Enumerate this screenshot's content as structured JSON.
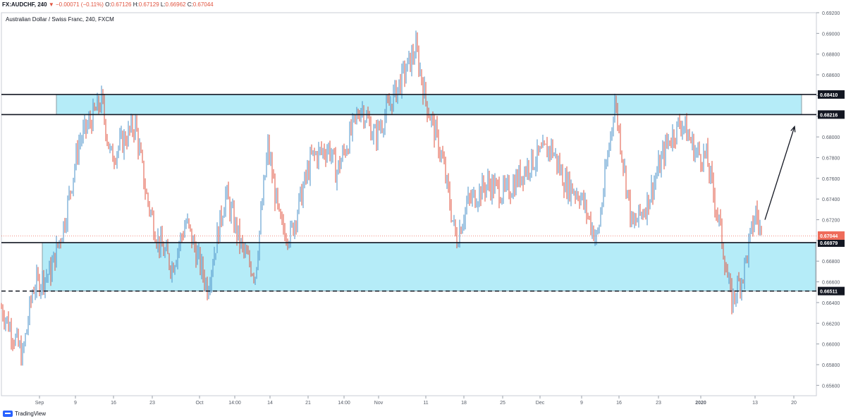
{
  "header": {
    "symbol": "FX:AUDCHF, 240",
    "change_arrow": "▼",
    "change": "−0.00071 (−0.11%)",
    "open_label": "O:",
    "open": "0.67126",
    "high_label": "H:",
    "high": "0.67129",
    "low_label": "L:",
    "low": "0.66962",
    "close_label": "C:",
    "close": "0.67044"
  },
  "subtitle": "Australian Dollar / Swiss Franc, 240, FXCM",
  "footer": {
    "brand": "TradingView",
    "logo_icon": "tradingview-logo-icon"
  },
  "colors": {
    "up": "#4a90c8",
    "down": "#e0533f",
    "zone_fill": "#b5ecf8",
    "zone_stroke": "#131722",
    "last_price": "#ef6c5a",
    "grid": "#d9dde4"
  },
  "chart_data": {
    "type": "candlestick",
    "symbol": "AUDCHF",
    "interval": "240",
    "ylim": [
      0.655,
      0.692
    ],
    "y_ticks": [
      "0.69200",
      "0.69000",
      "0.68800",
      "0.68600",
      "0.68400",
      "0.68200",
      "0.68000",
      "0.67800",
      "0.67600",
      "0.67400",
      "0.67200",
      "0.67000",
      "0.66800",
      "0.66600",
      "0.66400",
      "0.66200",
      "0.66000",
      "0.65800",
      "0.65600"
    ],
    "x_ticks": [
      "Sep",
      "9",
      "16",
      "23",
      "Oct",
      "14:00",
      "14",
      "21",
      "14:00",
      "Nov",
      "11",
      "18",
      "25",
      "Dec",
      "9",
      "16",
      "23",
      "2020",
      "13",
      "20"
    ],
    "price_path": [
      {
        "t": 0,
        "p": 0.6635
      },
      {
        "t": 30,
        "p": 0.6588
      },
      {
        "t": 45,
        "p": 0.6655
      },
      {
        "t": 70,
        "p": 0.667
      },
      {
        "t": 90,
        "p": 0.672
      },
      {
        "t": 110,
        "p": 0.6795
      },
      {
        "t": 142,
        "p": 0.6835
      },
      {
        "t": 155,
        "p": 0.678
      },
      {
        "t": 190,
        "p": 0.6812
      },
      {
        "t": 205,
        "p": 0.6745
      },
      {
        "t": 222,
        "p": 0.67
      },
      {
        "t": 242,
        "p": 0.6675
      },
      {
        "t": 262,
        "p": 0.6718
      },
      {
        "t": 292,
        "p": 0.6655
      },
      {
        "t": 318,
        "p": 0.6745
      },
      {
        "t": 342,
        "p": 0.669
      },
      {
        "t": 360,
        "p": 0.6668
      },
      {
        "t": 378,
        "p": 0.679
      },
      {
        "t": 395,
        "p": 0.6715
      },
      {
        "t": 410,
        "p": 0.6705
      },
      {
        "t": 440,
        "p": 0.678
      },
      {
        "t": 465,
        "p": 0.679
      },
      {
        "t": 475,
        "p": 0.6765
      },
      {
        "t": 510,
        "p": 0.683
      },
      {
        "t": 530,
        "p": 0.68
      },
      {
        "t": 560,
        "p": 0.6845
      },
      {
        "t": 588,
        "p": 0.6885
      },
      {
        "t": 602,
        "p": 0.6835
      },
      {
        "t": 625,
        "p": 0.678
      },
      {
        "t": 645,
        "p": 0.67
      },
      {
        "t": 660,
        "p": 0.6735
      },
      {
        "t": 690,
        "p": 0.6755
      },
      {
        "t": 715,
        "p": 0.6745
      },
      {
        "t": 750,
        "p": 0.6775
      },
      {
        "t": 780,
        "p": 0.679
      },
      {
        "t": 800,
        "p": 0.6755
      },
      {
        "t": 820,
        "p": 0.6745
      },
      {
        "t": 845,
        "p": 0.67
      },
      {
        "t": 870,
        "p": 0.6835
      },
      {
        "t": 895,
        "p": 0.6712
      },
      {
        "t": 915,
        "p": 0.6735
      },
      {
        "t": 945,
        "p": 0.6795
      },
      {
        "t": 965,
        "p": 0.6815
      },
      {
        "t": 985,
        "p": 0.6785
      },
      {
        "t": 1000,
        "p": 0.678
      },
      {
        "t": 1020,
        "p": 0.671
      },
      {
        "t": 1035,
        "p": 0.664
      },
      {
        "t": 1052,
        "p": 0.6668
      },
      {
        "t": 1070,
        "p": 0.6728
      },
      {
        "t": 1078,
        "p": 0.6704
      }
    ],
    "horizontal_levels": [
      {
        "price": 0.6841,
        "label": "0.68410",
        "style": "solid"
      },
      {
        "price": 0.68216,
        "label": "0.68216",
        "style": "solid"
      },
      {
        "price": 0.66979,
        "label": "0.66979",
        "style": "solid"
      },
      {
        "price": 0.66511,
        "label": "0.66511",
        "style": "dashed"
      }
    ],
    "zones": [
      {
        "from": 0.68216,
        "to": 0.6841,
        "start_t": 78,
        "end_t": 1135
      },
      {
        "from": 0.66511,
        "to": 0.66979,
        "start_t": 58,
        "end_t": 1155
      }
    ],
    "last_price": {
      "price": 0.67044,
      "label": "0.67044"
    },
    "projection_arrow": {
      "from": {
        "t": 1083,
        "p": 0.672
      },
      "to": {
        "t": 1125,
        "p": 0.681
      }
    }
  }
}
